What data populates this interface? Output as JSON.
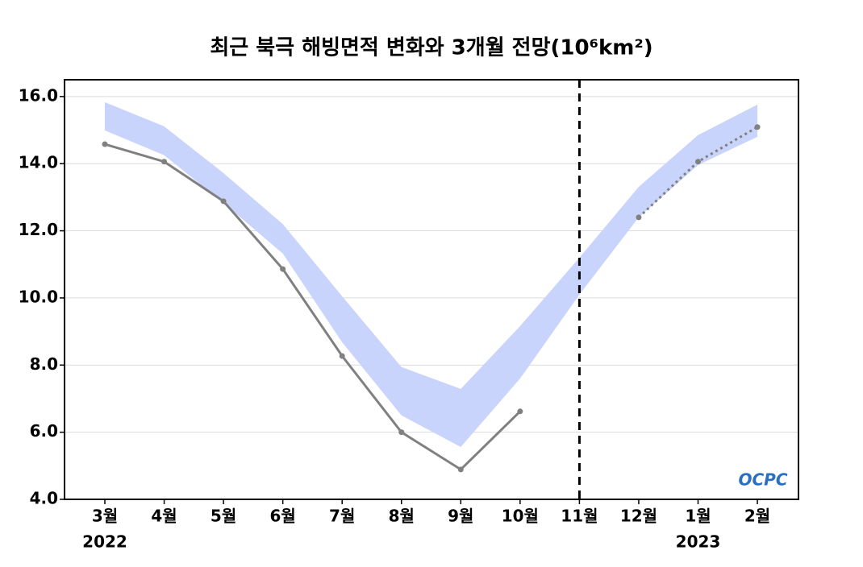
{
  "chart_data": {
    "type": "line",
    "title": "최근 북극 해빙면적 변화와 3개월 전망(10⁶km²)",
    "categories": [
      "3월",
      "4월",
      "5월",
      "6월",
      "7월",
      "8월",
      "9월",
      "10월",
      "11월",
      "12월",
      "1월",
      "2월"
    ],
    "year_labels": [
      "2022",
      null,
      null,
      null,
      null,
      null,
      null,
      null,
      null,
      null,
      "2023",
      null
    ],
    "series": [
      {
        "color": "#808080",
        "line_style": "solid",
        "values": [
          14.58,
          14.06,
          12.88,
          10.86,
          8.27,
          6.0,
          4.89,
          6.62,
          null,
          null,
          null,
          null
        ]
      },
      {
        "color": "#808080",
        "line_style": "dotted",
        "values": [
          null,
          null,
          null,
          null,
          null,
          null,
          null,
          null,
          null,
          12.4,
          14.06,
          15.09
        ]
      }
    ],
    "band": {
      "color": "#c8d4fb",
      "upper": [
        15.83,
        15.11,
        13.72,
        12.2,
        10.05,
        7.94,
        7.29,
        9.16,
        11.2,
        13.31,
        14.85,
        15.76
      ],
      "lower": [
        14.99,
        14.25,
        12.83,
        11.32,
        8.68,
        6.5,
        5.56,
        7.6,
        10.1,
        12.4,
        13.96,
        14.8
      ]
    },
    "ylim": [
      4,
      16.5
    ],
    "yticks": [
      {
        "value": 4,
        "label": "4.0"
      },
      {
        "value": 6,
        "label": "6.0"
      },
      {
        "value": 8,
        "label": "8.0"
      },
      {
        "value": 10,
        "label": "10.0"
      },
      {
        "value": 12,
        "label": "12.0"
      },
      {
        "value": 14,
        "label": "14.0"
      },
      {
        "value": 16,
        "label": "16.0"
      }
    ],
    "grid": true,
    "logo": "OCPC"
  }
}
